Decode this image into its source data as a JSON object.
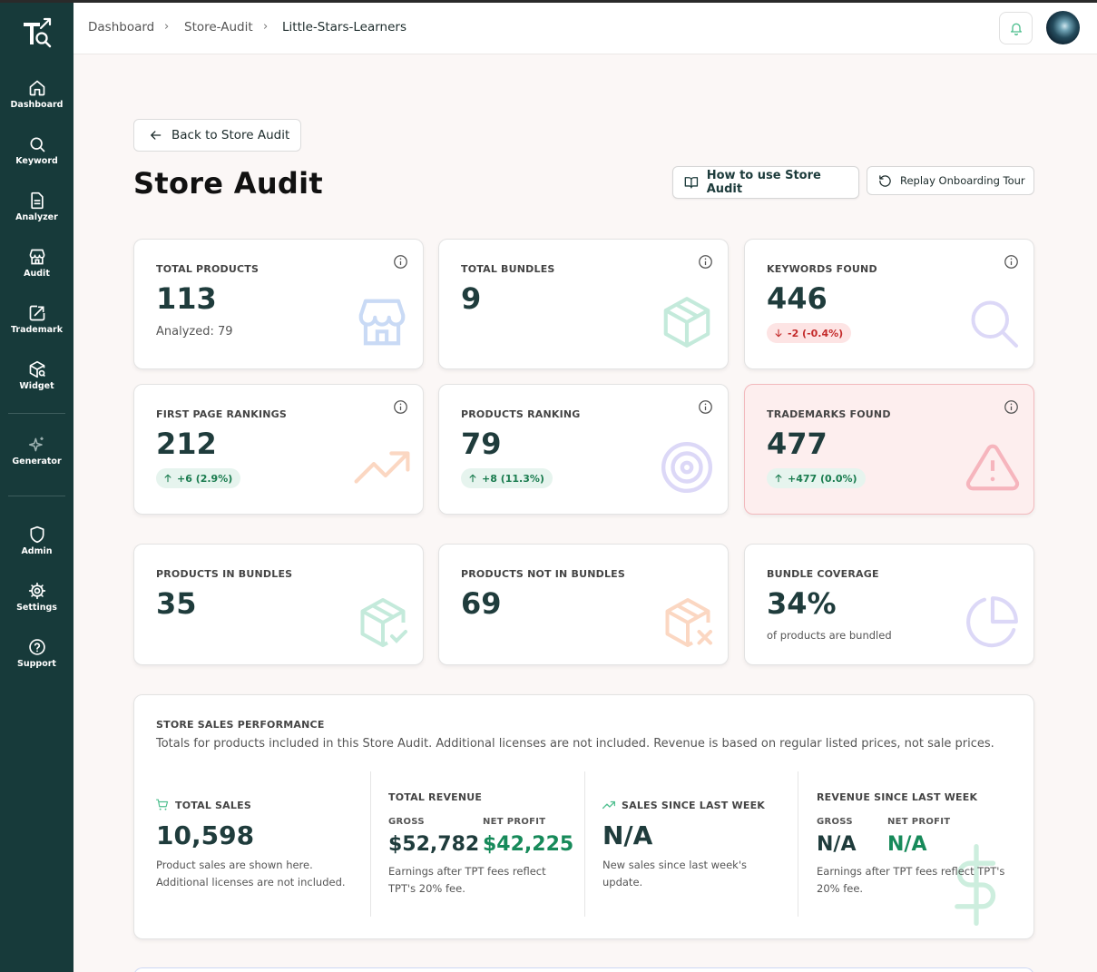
{
  "sidebar": {
    "items": [
      {
        "label": "Dashboard",
        "icon": "home-icon"
      },
      {
        "label": "Keyword",
        "icon": "search-icon"
      },
      {
        "label": "Analyzer",
        "icon": "document-icon"
      },
      {
        "label": "Audit",
        "icon": "store-icon"
      },
      {
        "label": "Trademark",
        "icon": "edit-box-icon"
      },
      {
        "label": "Widget",
        "icon": "box-search-icon"
      },
      {
        "label": "Generator",
        "icon": "sparkles-icon"
      },
      {
        "label": "Admin",
        "icon": "shield-icon"
      },
      {
        "label": "Settings",
        "icon": "gear-icon"
      },
      {
        "label": "Support",
        "icon": "help-circle-icon"
      }
    ]
  },
  "header": {
    "breadcrumbs": [
      "Dashboard",
      "Store-Audit",
      "Little-Stars-Learners"
    ]
  },
  "page": {
    "back_label": "Back to Store Audit",
    "title": "Store Audit",
    "howto_label": "How to use Store Audit",
    "replay_label": "Replay Onboarding Tour"
  },
  "cards": {
    "total_products": {
      "label": "TOTAL PRODUCTS",
      "value": "113",
      "sub": "Analyzed: 79"
    },
    "total_bundles": {
      "label": "TOTAL BUNDLES",
      "value": "9"
    },
    "keywords_found": {
      "label": "KEYWORDS FOUND",
      "value": "446",
      "change": "-2 (-0.4%)"
    },
    "first_page": {
      "label": "FIRST PAGE RANKINGS",
      "value": "212",
      "change": "+6 (2.9%)"
    },
    "products_ranking": {
      "label": "PRODUCTS RANKING",
      "value": "79",
      "change": "+8 (11.3%)"
    },
    "trademarks_found": {
      "label": "TRADEMARKS FOUND",
      "value": "477",
      "change": "+477 (0.0%)"
    },
    "products_in_bundles": {
      "label": "PRODUCTS IN BUNDLES",
      "value": "35"
    },
    "products_not_in_bundles": {
      "label": "PRODUCTS NOT IN BUNDLES",
      "value": "69"
    },
    "bundle_coverage": {
      "label": "BUNDLE COVERAGE",
      "value": "34%",
      "sub": "of products are bundled"
    }
  },
  "sales": {
    "title": "STORE SALES PERFORMANCE",
    "description": "Totals for products included in this Store Audit. Additional licenses are not included. Revenue is based on regular listed prices, not sale prices.",
    "total_sales": {
      "label": "TOTAL SALES",
      "value": "10,598",
      "note_1": "Product sales are shown here.",
      "note_2": "Additional licenses are not included."
    },
    "total_revenue": {
      "label": "TOTAL REVENUE",
      "gross_label": "GROSS",
      "gross": "$52,782",
      "net_label": "NET PROFIT",
      "net": "$42,225",
      "note_1": "Earnings after TPT fees reflect",
      "note_2": "TPT's 20% fee."
    },
    "sales_since": {
      "label": "SALES SINCE LAST WEEK",
      "value": "N/A",
      "note_1": "New sales since last week's",
      "note_2": "update."
    },
    "revenue_since": {
      "label": "REVENUE SINCE LAST WEEK",
      "gross_label": "GROSS",
      "gross": "N/A",
      "net_label": "NET PROFIT",
      "net": "N/A",
      "note_1": "Earnings after TPT fees reflect TPT's",
      "note_2": "20% fee."
    }
  },
  "colors": {
    "sidebar_bg": "#173a3a",
    "accent_green": "#178a5a",
    "negative_red": "#c42b2b",
    "warning_card_bg": "#fdeeee"
  }
}
